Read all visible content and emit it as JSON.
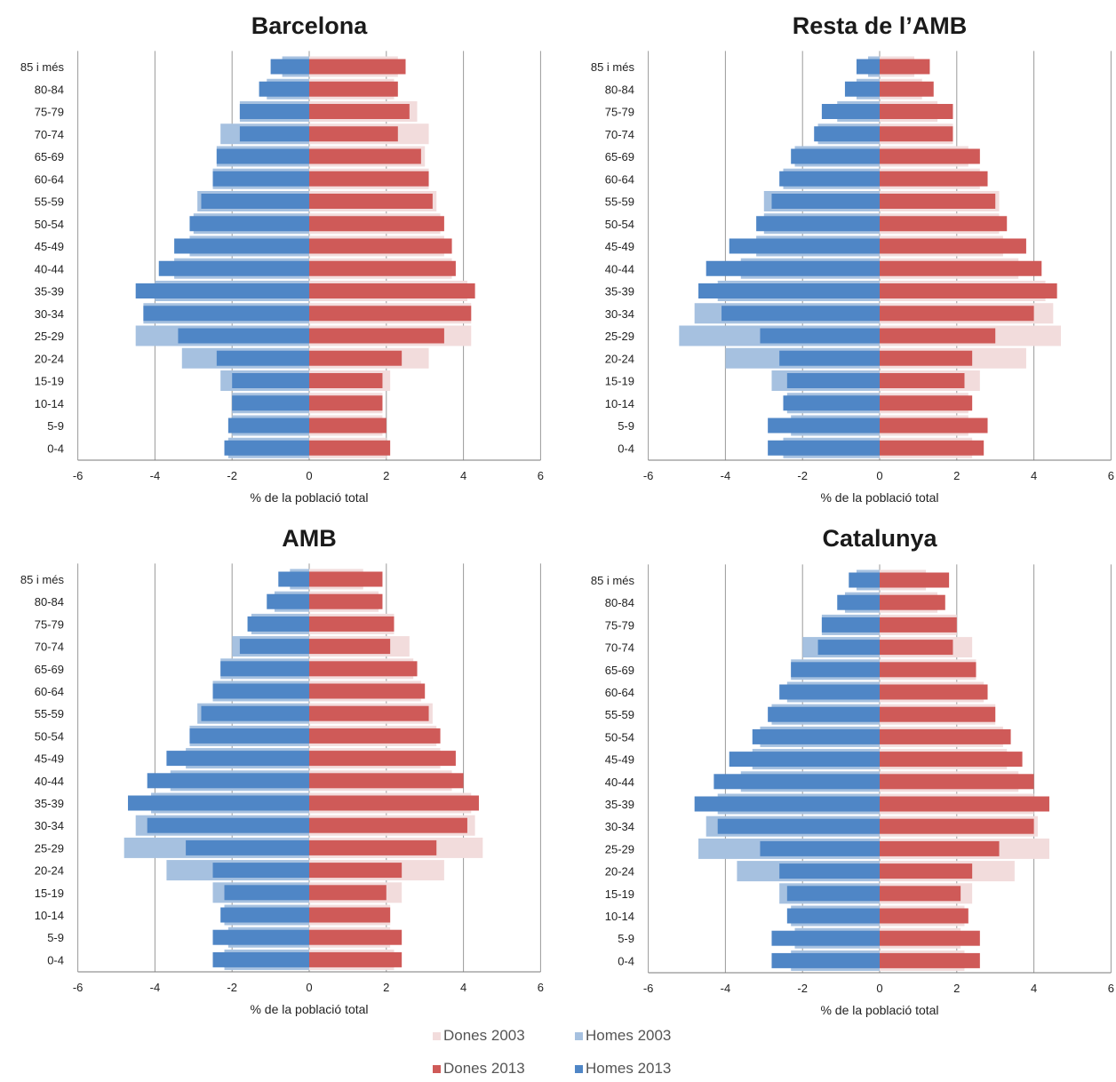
{
  "chart_data": [
    {
      "type": "bar",
      "title": "Barcelona",
      "xlabel": "% de la població total",
      "xlim": [
        -6,
        6
      ],
      "xticks": [
        "-6",
        "-4",
        "-2",
        "0",
        "2",
        "4",
        "6"
      ],
      "categories": [
        "0-4",
        "5-9",
        "10-14",
        "15-19",
        "20-24",
        "25-29",
        "30-34",
        "35-39",
        "40-44",
        "45-49",
        "50-54",
        "55-59",
        "60-64",
        "65-69",
        "70-74",
        "75-79",
        "80-84",
        "85 i més"
      ],
      "series": [
        {
          "name": "Homes 2003",
          "values": [
            -2.1,
            -2.0,
            -2.0,
            -2.3,
            -3.3,
            -4.5,
            -4.3,
            -4.0,
            -3.5,
            -3.1,
            -3.0,
            -2.9,
            -2.5,
            -2.4,
            -2.3,
            -1.8,
            -1.1,
            -0.7
          ]
        },
        {
          "name": "Homes 2013",
          "values": [
            -2.2,
            -2.1,
            -2.0,
            -2.0,
            -2.4,
            -3.4,
            -4.3,
            -4.5,
            -3.9,
            -3.5,
            -3.1,
            -2.8,
            -2.5,
            -2.4,
            -1.8,
            -1.8,
            -1.3,
            -1.0
          ]
        },
        {
          "name": "Dones 2003",
          "values": [
            2.0,
            1.9,
            1.9,
            2.1,
            3.1,
            4.2,
            4.2,
            4.1,
            3.7,
            3.5,
            3.4,
            3.3,
            3.1,
            3.0,
            3.1,
            2.8,
            2.2,
            2.3
          ]
        },
        {
          "name": "Dones 2013",
          "values": [
            2.1,
            2.0,
            1.9,
            1.9,
            2.4,
            3.5,
            4.2,
            4.3,
            3.8,
            3.7,
            3.5,
            3.2,
            3.1,
            2.9,
            2.3,
            2.6,
            2.3,
            2.5
          ]
        }
      ]
    },
    {
      "type": "bar",
      "title": "Resta de l’AMB",
      "xlabel": "% de la població total",
      "xlim": [
        -6,
        6
      ],
      "xticks": [
        "-6",
        "-4",
        "-2",
        "0",
        "2",
        "4",
        "6"
      ],
      "categories": [
        "0-4",
        "5-9",
        "10-14",
        "15-19",
        "20-24",
        "25-29",
        "30-34",
        "35-39",
        "40-44",
        "45-49",
        "50-54",
        "55-59",
        "60-64",
        "65-69",
        "70-74",
        "75-79",
        "80-84",
        "85 i més"
      ],
      "series": [
        {
          "name": "Homes 2003",
          "values": [
            -2.5,
            -2.3,
            -2.4,
            -2.8,
            -4.0,
            -5.2,
            -4.8,
            -4.2,
            -3.6,
            -3.2,
            -3.0,
            -3.0,
            -2.5,
            -2.2,
            -1.6,
            -1.1,
            -0.6,
            -0.3
          ]
        },
        {
          "name": "Homes 2013",
          "values": [
            -2.9,
            -2.9,
            -2.5,
            -2.4,
            -2.6,
            -3.1,
            -4.1,
            -4.7,
            -4.5,
            -3.9,
            -3.2,
            -2.8,
            -2.6,
            -2.3,
            -1.7,
            -1.5,
            -0.9,
            -0.6
          ]
        },
        {
          "name": "Dones 2003",
          "values": [
            2.4,
            2.3,
            2.3,
            2.6,
            3.8,
            4.7,
            4.5,
            4.3,
            3.6,
            3.2,
            3.1,
            3.1,
            2.6,
            2.3,
            1.9,
            1.5,
            1.1,
            0.9
          ]
        },
        {
          "name": "Dones 2013",
          "values": [
            2.7,
            2.8,
            2.4,
            2.2,
            2.4,
            3.0,
            4.0,
            4.6,
            4.2,
            3.8,
            3.3,
            3.0,
            2.8,
            2.6,
            1.9,
            1.9,
            1.4,
            1.3
          ]
        }
      ]
    },
    {
      "type": "bar",
      "title": "AMB",
      "xlabel": "% de la població total",
      "xlim": [
        -6,
        6
      ],
      "xticks": [
        "-6",
        "-4",
        "-2",
        "0",
        "2",
        "4",
        "6"
      ],
      "categories": [
        "0-4",
        "5-9",
        "10-14",
        "15-19",
        "20-24",
        "25-29",
        "30-34",
        "35-39",
        "40-44",
        "45-49",
        "50-54",
        "55-59",
        "60-64",
        "65-69",
        "70-74",
        "75-79",
        "80-84",
        "85 i més"
      ],
      "series": [
        {
          "name": "Homes 2003",
          "values": [
            -2.2,
            -2.1,
            -2.2,
            -2.5,
            -3.7,
            -4.8,
            -4.5,
            -4.1,
            -3.6,
            -3.2,
            -3.1,
            -2.9,
            -2.5,
            -2.3,
            -2.0,
            -1.5,
            -0.9,
            -0.5
          ]
        },
        {
          "name": "Homes 2013",
          "values": [
            -2.5,
            -2.5,
            -2.3,
            -2.2,
            -2.5,
            -3.2,
            -4.2,
            -4.7,
            -4.2,
            -3.7,
            -3.1,
            -2.8,
            -2.5,
            -2.3,
            -1.8,
            -1.6,
            -1.1,
            -0.8
          ]
        },
        {
          "name": "Dones 2003",
          "values": [
            2.2,
            2.1,
            2.1,
            2.4,
            3.5,
            4.5,
            4.3,
            4.2,
            3.7,
            3.4,
            3.3,
            3.2,
            2.9,
            2.7,
            2.6,
            2.2,
            1.8,
            1.4
          ]
        },
        {
          "name": "Dones 2013",
          "values": [
            2.4,
            2.4,
            2.1,
            2.0,
            2.4,
            3.3,
            4.1,
            4.4,
            4.0,
            3.8,
            3.4,
            3.1,
            3.0,
            2.8,
            2.1,
            2.2,
            1.9,
            1.9
          ]
        }
      ]
    },
    {
      "type": "bar",
      "title": "Catalunya",
      "xlabel": "% de la població total",
      "xlim": [
        -6,
        6
      ],
      "xticks": [
        "-6",
        "-4",
        "-2",
        "0",
        "2",
        "4",
        "6"
      ],
      "categories": [
        "0-4",
        "5-9",
        "10-14",
        "15-19",
        "20-24",
        "25-29",
        "30-34",
        "35-39",
        "40-44",
        "45-49",
        "50-54",
        "55-59",
        "60-64",
        "65-69",
        "70-74",
        "75-79",
        "80-84",
        "85 i més"
      ],
      "series": [
        {
          "name": "Homes 2003",
          "values": [
            -2.3,
            -2.2,
            -2.3,
            -2.6,
            -3.7,
            -4.7,
            -4.5,
            -4.2,
            -3.6,
            -3.3,
            -3.1,
            -2.8,
            -2.4,
            -2.3,
            -2.0,
            -1.5,
            -0.9,
            -0.6
          ]
        },
        {
          "name": "Homes 2013",
          "values": [
            -2.8,
            -2.8,
            -2.4,
            -2.4,
            -2.6,
            -3.1,
            -4.2,
            -4.8,
            -4.3,
            -3.9,
            -3.3,
            -2.9,
            -2.6,
            -2.3,
            -1.6,
            -1.5,
            -1.1,
            -0.8
          ]
        },
        {
          "name": "Dones 2003",
          "values": [
            2.2,
            2.1,
            2.2,
            2.4,
            3.5,
            4.4,
            4.1,
            4.0,
            3.6,
            3.3,
            3.2,
            3.0,
            2.7,
            2.5,
            2.4,
            2.0,
            1.5,
            1.2
          ]
        },
        {
          "name": "Dones 2013",
          "values": [
            2.6,
            2.6,
            2.3,
            2.1,
            2.4,
            3.1,
            4.0,
            4.4,
            4.0,
            3.7,
            3.4,
            3.0,
            2.8,
            2.5,
            1.9,
            2.0,
            1.7,
            1.8
          ]
        }
      ]
    }
  ],
  "legend": [
    {
      "label": "Dones 2003",
      "color": "#f2dcdc"
    },
    {
      "label": "Homes 2003",
      "color": "#a6c1e0"
    },
    {
      "label": "Dones 2013",
      "color": "#cf5a58"
    },
    {
      "label": "Homes 2013",
      "color": "#4f86c6"
    }
  ],
  "colors": {
    "homes_2003": "#a6c1e0",
    "homes_2013": "#4f86c6",
    "dones_2003": "#f2dcdc",
    "dones_2013": "#cf5a58",
    "gridline": "#9a9a9a"
  }
}
